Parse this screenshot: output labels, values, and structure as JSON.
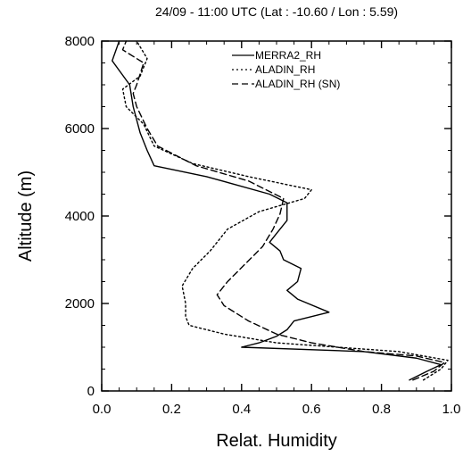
{
  "chart_data": {
    "type": "line",
    "title": "24/09 - 11:00 UTC (Lat : -10.60 / Lon : 5.59)",
    "xlabel": "Relat. Humidity",
    "ylabel": "Altitude (m)",
    "xlim": [
      0.0,
      1.0
    ],
    "ylim": [
      0,
      8000
    ],
    "x_ticks": [
      0.0,
      0.2,
      0.4,
      0.6,
      0.8,
      1.0
    ],
    "x_tick_labels": [
      "0.0",
      "0.2",
      "0.4",
      "0.6",
      "0.8",
      "1.0"
    ],
    "y_ticks": [
      0,
      2000,
      4000,
      6000,
      8000
    ],
    "y_tick_labels": [
      "0",
      "2000",
      "4000",
      "6000",
      "8000"
    ],
    "grid": false,
    "legend_position": "top-center",
    "series": [
      {
        "name": "MERRA2_RH",
        "dash": "solid",
        "color": "#000000",
        "points": [
          [
            0.88,
            250
          ],
          [
            0.93,
            450
          ],
          [
            0.97,
            600
          ],
          [
            0.9,
            750
          ],
          [
            0.75,
            900
          ],
          [
            0.4,
            1000
          ],
          [
            0.45,
            1100
          ],
          [
            0.5,
            1250
          ],
          [
            0.53,
            1400
          ],
          [
            0.55,
            1600
          ],
          [
            0.65,
            1800
          ],
          [
            0.56,
            2100
          ],
          [
            0.53,
            2300
          ],
          [
            0.56,
            2500
          ],
          [
            0.57,
            2800
          ],
          [
            0.52,
            3000
          ],
          [
            0.51,
            3200
          ],
          [
            0.48,
            3400
          ],
          [
            0.5,
            3600
          ],
          [
            0.53,
            3900
          ],
          [
            0.53,
            4300
          ],
          [
            0.48,
            4500
          ],
          [
            0.3,
            4900
          ],
          [
            0.15,
            5150
          ],
          [
            0.13,
            5500
          ],
          [
            0.11,
            5900
          ],
          [
            0.09,
            6500
          ],
          [
            0.08,
            7000
          ],
          [
            0.03,
            7550
          ],
          [
            0.05,
            8000
          ]
        ]
      },
      {
        "name": "ALADIN_RH",
        "dash": "dotted",
        "color": "#000000",
        "points": [
          [
            0.92,
            250
          ],
          [
            0.97,
            500
          ],
          [
            0.99,
            700
          ],
          [
            0.85,
            900
          ],
          [
            0.5,
            1100
          ],
          [
            0.35,
            1300
          ],
          [
            0.25,
            1500
          ],
          [
            0.24,
            1700
          ],
          [
            0.24,
            2000
          ],
          [
            0.23,
            2400
          ],
          [
            0.26,
            2800
          ],
          [
            0.31,
            3200
          ],
          [
            0.36,
            3700
          ],
          [
            0.45,
            4100
          ],
          [
            0.58,
            4400
          ],
          [
            0.6,
            4600
          ],
          [
            0.42,
            4900
          ],
          [
            0.26,
            5200
          ],
          [
            0.15,
            5600
          ],
          [
            0.12,
            6100
          ],
          [
            0.07,
            6500
          ],
          [
            0.06,
            6900
          ],
          [
            0.11,
            7200
          ],
          [
            0.13,
            7600
          ],
          [
            0.1,
            8000
          ]
        ]
      },
      {
        "name": "ALADIN_RH (SN)",
        "dash": "dashed",
        "color": "#000000",
        "points": [
          [
            0.89,
            250
          ],
          [
            0.95,
            450
          ],
          [
            0.98,
            650
          ],
          [
            0.9,
            800
          ],
          [
            0.75,
            900
          ],
          [
            0.6,
            1100
          ],
          [
            0.5,
            1300
          ],
          [
            0.42,
            1600
          ],
          [
            0.35,
            1950
          ],
          [
            0.33,
            2200
          ],
          [
            0.36,
            2500
          ],
          [
            0.41,
            2900
          ],
          [
            0.46,
            3300
          ],
          [
            0.49,
            3700
          ],
          [
            0.51,
            4050
          ],
          [
            0.52,
            4400
          ],
          [
            0.42,
            4800
          ],
          [
            0.27,
            5150
          ],
          [
            0.16,
            5600
          ],
          [
            0.13,
            6000
          ],
          [
            0.1,
            6500
          ],
          [
            0.09,
            6800
          ],
          [
            0.1,
            7000
          ],
          [
            0.12,
            7500
          ],
          [
            0.06,
            7800
          ],
          [
            0.07,
            8000
          ]
        ]
      }
    ]
  }
}
